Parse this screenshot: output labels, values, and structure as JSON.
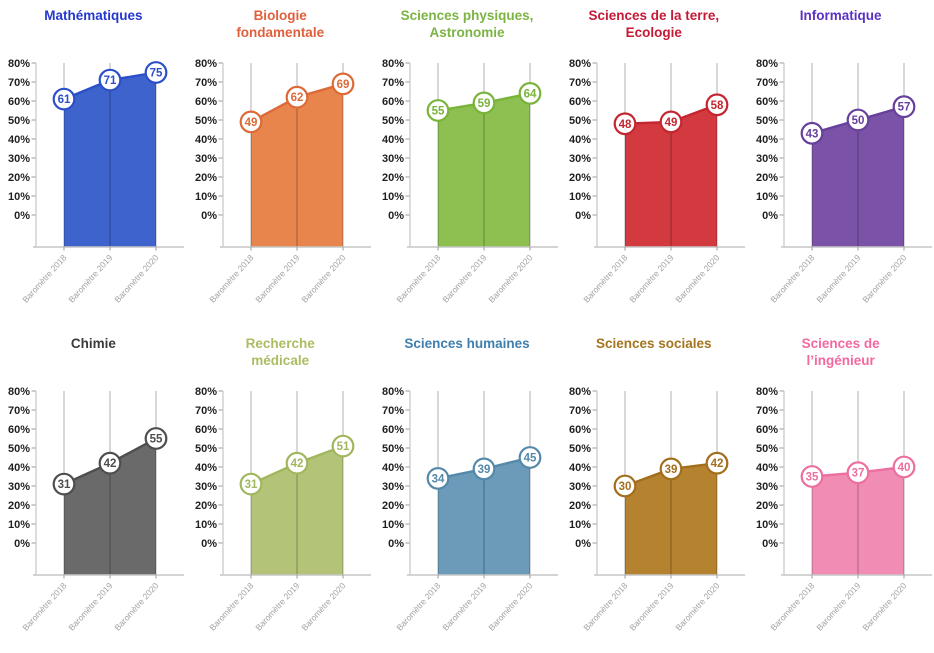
{
  "shared": {
    "x_categories": [
      "Baromètre 2018",
      "Baromètre 2019",
      "Baromètre 2020"
    ],
    "y_ticks": [
      "80%",
      "70%",
      "60%",
      "50%",
      "40%",
      "30%",
      "20%",
      "10%",
      "0%"
    ],
    "ylim": [
      0,
      80
    ],
    "grid": true,
    "legend": "none"
  },
  "chart_data": [
    {
      "type": "area",
      "title": "Mathématiques",
      "title_lines": "Mathématiques",
      "categories": [
        "Baromètre 2018",
        "Baromètre 2019",
        "Baromètre 2020"
      ],
      "values": [
        61,
        71,
        75
      ],
      "unit": "%",
      "ylim": [
        0,
        80
      ],
      "fill": "#3E63CC",
      "stroke": "#2B4FC8",
      "title_color": "#2438CE"
    },
    {
      "type": "area",
      "title": "Biologie fondamentale",
      "title_lines": "Biologie\nfondamentale",
      "categories": [
        "Baromètre 2018",
        "Baromètre 2019",
        "Baromètre 2020"
      ],
      "values": [
        49,
        62,
        69
      ],
      "unit": "%",
      "ylim": [
        0,
        80
      ],
      "fill": "#E8854D",
      "stroke": "#DD6A36",
      "title_color": "#E0603C"
    },
    {
      "type": "area",
      "title": "Sciences physiques, Astronomie",
      "title_lines": "Sciences physiques,\nAstronomie",
      "categories": [
        "Baromètre 2018",
        "Baromètre 2019",
        "Baromètre 2020"
      ],
      "values": [
        55,
        59,
        64
      ],
      "unit": "%",
      "ylim": [
        0,
        80
      ],
      "fill": "#8DC050",
      "stroke": "#79B33A",
      "title_color": "#7CB443"
    },
    {
      "type": "area",
      "title": "Sciences de la terre, Ecologie",
      "title_lines": "Sciences de la terre,\nEcologie",
      "categories": [
        "Baromètre 2018",
        "Baromètre 2019",
        "Baromètre 2020"
      ],
      "values": [
        48,
        49,
        58
      ],
      "unit": "%",
      "ylim": [
        0,
        80
      ],
      "fill": "#D23A40",
      "stroke": "#C5252F",
      "title_color": "#C51A35"
    },
    {
      "type": "area",
      "title": "Informatique",
      "title_lines": "Informatique",
      "categories": [
        "Baromètre 2018",
        "Baromètre 2019",
        "Baromètre 2020"
      ],
      "values": [
        43,
        50,
        57
      ],
      "unit": "%",
      "ylim": [
        0,
        80
      ],
      "fill": "#7A52A8",
      "stroke": "#66409B",
      "title_color": "#5A31C4"
    },
    {
      "type": "area",
      "title": "Chimie",
      "title_lines": "Chimie",
      "categories": [
        "Baromètre 2018",
        "Baromètre 2019",
        "Baromètre 2020"
      ],
      "values": [
        31,
        42,
        55
      ],
      "unit": "%",
      "ylim": [
        0,
        80
      ],
      "fill": "#6A6A6A",
      "stroke": "#4E4E4E",
      "title_color": "#3B3B3B"
    },
    {
      "type": "area",
      "title": "Recherche médicale",
      "title_lines": "Recherche\nmédicale",
      "categories": [
        "Baromètre 2018",
        "Baromètre 2019",
        "Baromètre 2020"
      ],
      "values": [
        31,
        42,
        51
      ],
      "unit": "%",
      "ylim": [
        0,
        80
      ],
      "fill": "#B3C478",
      "stroke": "#A1B75E",
      "title_color": "#AABD62"
    },
    {
      "type": "area",
      "title": "Sciences humaines",
      "title_lines": "Sciences humaines",
      "categories": [
        "Baromètre 2018",
        "Baromètre 2019",
        "Baromètre 2020"
      ],
      "values": [
        34,
        39,
        45
      ],
      "unit": "%",
      "ylim": [
        0,
        80
      ],
      "fill": "#6B9BB8",
      "stroke": "#5589A9",
      "title_color": "#3F7FAE"
    },
    {
      "type": "area",
      "title": "Sciences sociales",
      "title_lines": "Sciences sociales",
      "categories": [
        "Baromètre 2018",
        "Baromètre 2019",
        "Baromètre 2020"
      ],
      "values": [
        30,
        39,
        42
      ],
      "unit": "%",
      "ylim": [
        0,
        80
      ],
      "fill": "#B5822F",
      "stroke": "#A26E1C",
      "title_color": "#A5751F"
    },
    {
      "type": "area",
      "title": "Sciences de l’ingénieur",
      "title_lines": "Sciences de\nl’ingénieur",
      "categories": [
        "Baromètre 2018",
        "Baromètre 2019",
        "Baromètre 2020"
      ],
      "values": [
        35,
        37,
        40
      ],
      "unit": "%",
      "ylim": [
        0,
        80
      ],
      "fill": "#F18DB4",
      "stroke": "#EC6F9F",
      "title_color": "#F4679F"
    }
  ],
  "style_colors": {
    "axis_line": "#c6c6c6",
    "tick": "#9b9b9b",
    "gridline_overlay": "rgba(0,0,0,0.30)",
    "x_label": "#a3a3a3",
    "y_label": "#1f1f1f",
    "marker_fill": "#ffffff",
    "background": "#ffffff"
  }
}
